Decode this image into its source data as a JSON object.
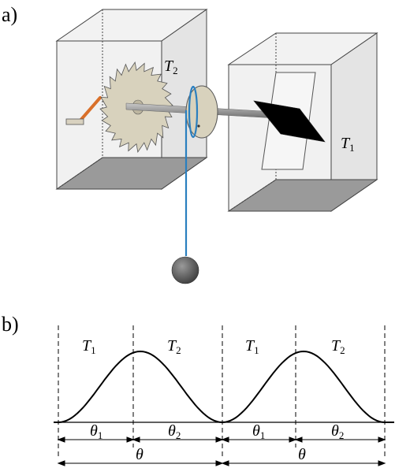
{
  "panel_a": {
    "label": "a)",
    "left_box_temp": "T",
    "left_box_temp_sub": "2",
    "right_box_temp": "T",
    "right_box_temp_sub": "1"
  },
  "panel_b": {
    "label": "b)",
    "regions": [
      {
        "name": "T",
        "sub": "1"
      },
      {
        "name": "T",
        "sub": "2"
      },
      {
        "name": "T",
        "sub": "1"
      },
      {
        "name": "T",
        "sub": "2"
      }
    ],
    "half_periods": [
      {
        "name": "θ",
        "sub": "1"
      },
      {
        "name": "θ",
        "sub": "2"
      },
      {
        "name": "θ",
        "sub": "1"
      },
      {
        "name": "θ",
        "sub": "2"
      }
    ],
    "periods": [
      "θ",
      "θ"
    ]
  },
  "colors": {
    "box_face": "#ececec",
    "box_floor": "#9a9a9a",
    "wheel_fill": "#d8d2bd",
    "axle": "#8c8c8c",
    "rope": "#2a7fbf",
    "pawl": "#d9702a",
    "weight": "#5a5a5a"
  }
}
